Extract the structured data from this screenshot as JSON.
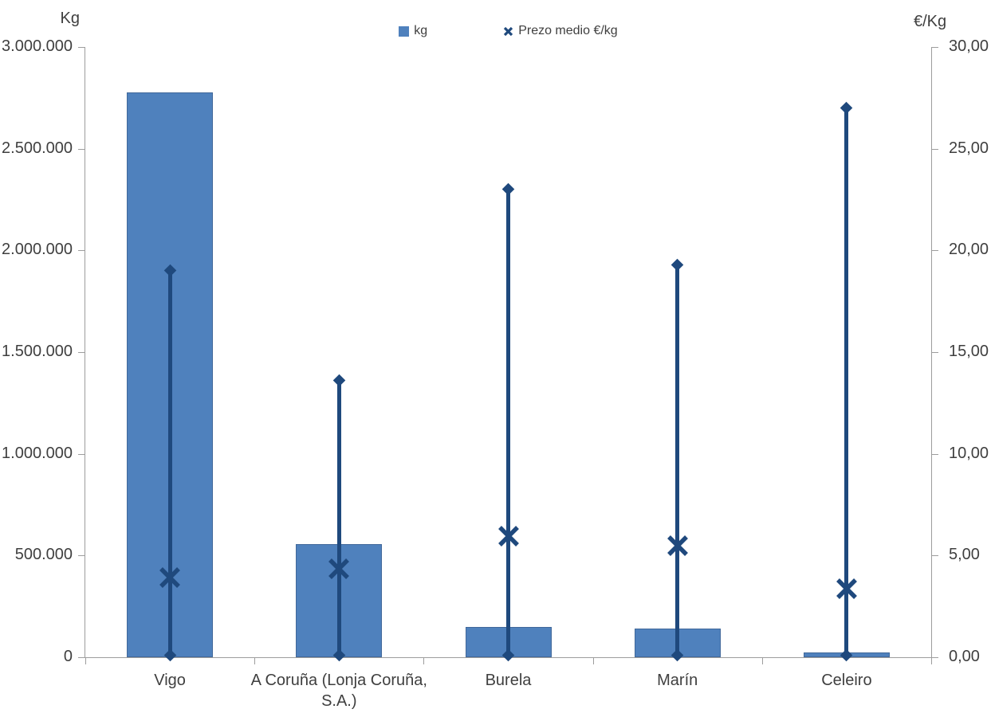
{
  "colors": {
    "bar": "#4f81bd",
    "bar_border": "#41689a",
    "line": "#1f497d",
    "axis": "#9d9d9d",
    "text": "#3f3f3f"
  },
  "chart_data": {
    "type": "bar",
    "subtype": "combo-bar-with-highlow-price-markers",
    "title": "",
    "categories": [
      "Vigo",
      "A Coruña (Lonja Coruña, S.A.)",
      "Burela",
      "Marín",
      "Celeiro"
    ],
    "legend": [
      {
        "label": "kg",
        "marker": "square"
      },
      {
        "label": "Prezo medio €/kg",
        "marker": "x"
      }
    ],
    "legend_position": "top-center",
    "grid": "off",
    "left_axis": {
      "title": "Kg",
      "min": 0,
      "max": 3000000,
      "step": 500000,
      "ticks": [
        "3.000.000",
        "2.500.000",
        "2.000.000",
        "1.500.000",
        "1.000.000",
        "500.000",
        "0"
      ]
    },
    "right_axis": {
      "title": "€/Kg",
      "min": 0,
      "max": 30,
      "step": 5,
      "ticks": [
        "30,00",
        "25,00",
        "20,00",
        "15,00",
        "10,00",
        "5,00",
        "0,00"
      ]
    },
    "series": [
      {
        "name": "kg",
        "type": "bar",
        "axis": "left",
        "values": [
          2775000,
          555000,
          150000,
          140000,
          25000
        ]
      },
      {
        "name": "Prezo medio €/kg",
        "type": "high-low-line-with-mean-x",
        "axis": "right",
        "max": [
          19.0,
          13.6,
          23.0,
          19.3,
          27.0
        ],
        "mean": [
          3.9,
          4.35,
          5.95,
          5.5,
          3.35
        ],
        "min": [
          0.1,
          0.1,
          0.1,
          0.1,
          0.1
        ]
      }
    ]
  }
}
